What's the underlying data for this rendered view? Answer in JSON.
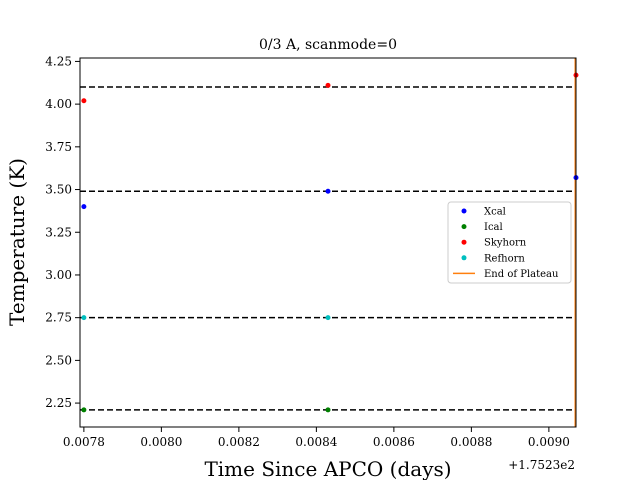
{
  "chart_data": {
    "type": "scatter",
    "title": "0/3 A, scanmode=0",
    "xlabel": "Time Since APCO (days)",
    "ylabel": "Temperature (K)",
    "x_offset_label": "+1.7523e2",
    "xlim": [
      0.00779,
      0.00907
    ],
    "ylim": [
      2.11,
      4.27
    ],
    "x_ticks": [
      0.0078,
      0.008,
      0.0082,
      0.0084,
      0.0086,
      0.0088,
      0.009
    ],
    "x_tick_labels": [
      "0.0078",
      "0.0080",
      "0.0082",
      "0.0084",
      "0.0086",
      "0.0088",
      "0.0090"
    ],
    "y_ticks": [
      2.25,
      2.5,
      2.75,
      3.0,
      3.25,
      3.5,
      3.75,
      4.0,
      4.25
    ],
    "y_tick_labels": [
      "2.25",
      "2.50",
      "2.75",
      "3.00",
      "3.25",
      "3.50",
      "3.75",
      "4.00",
      "4.25"
    ],
    "grid": false,
    "legend_position": "center-right",
    "reference_lines": [
      4.1,
      3.49,
      2.75,
      2.21
    ],
    "series": [
      {
        "name": "Xcal",
        "color": "#0000ff",
        "points": [
          [
            0.0078,
            3.4
          ],
          [
            0.00843,
            3.49
          ],
          [
            0.00907,
            3.57
          ]
        ]
      },
      {
        "name": "Ical",
        "color": "#008000",
        "points": [
          [
            0.0078,
            2.21
          ],
          [
            0.00843,
            2.21
          ]
        ]
      },
      {
        "name": "Skyhorn",
        "color": "#ff0000",
        "points": [
          [
            0.0078,
            4.02
          ],
          [
            0.00843,
            4.11
          ],
          [
            0.00907,
            4.17
          ]
        ]
      },
      {
        "name": "Refhorn",
        "color": "#00bfbf",
        "points": [
          [
            0.0078,
            2.75
          ],
          [
            0.00843,
            2.75
          ]
        ]
      }
    ],
    "end_of_plateau": {
      "name": "End of Plateau",
      "color": "#ff7f0e",
      "x": 0.009068
    }
  }
}
